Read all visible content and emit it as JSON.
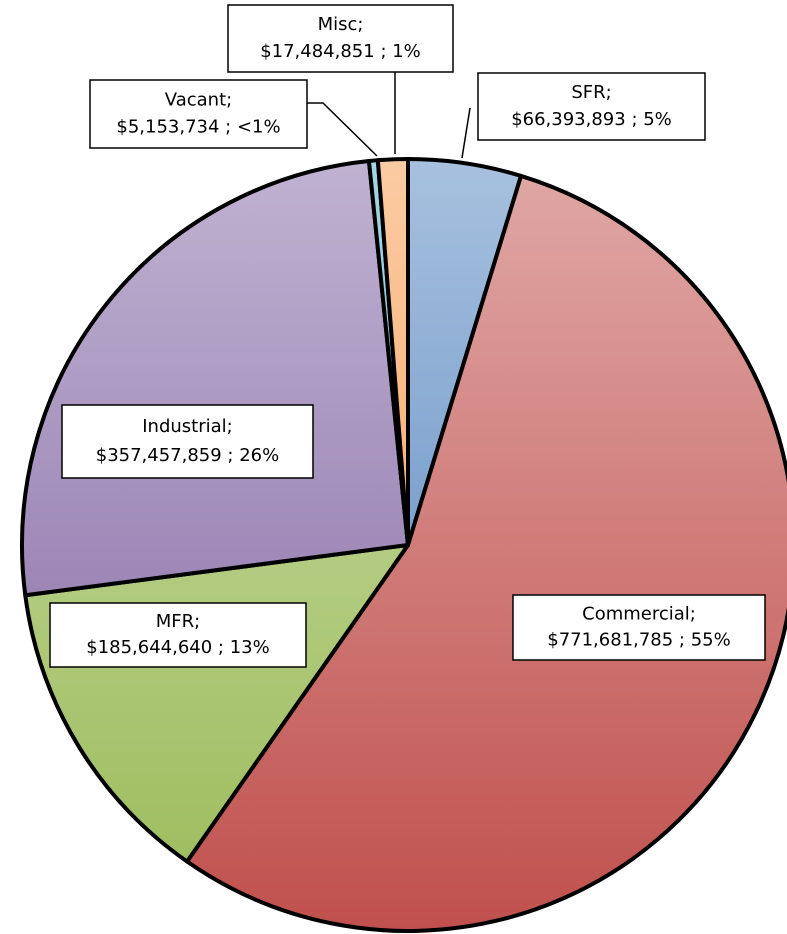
{
  "chart_data": {
    "type": "pie",
    "categories": [
      "SFR;",
      "Commercial;",
      "MFR;",
      "Industrial;",
      "Vacant;",
      "Misc;"
    ],
    "values": [
      66393893,
      771681785,
      185644640,
      357457859,
      5153734,
      17484851
    ],
    "value_labels": [
      "$66,393,893 ; 5%",
      "$771,681,785 ; 55%",
      "$185,644,640 ; 13%",
      "$357,457,859 ; 26%",
      "$5,153,734 ; <1%",
      "$17,484,851 ; 1%"
    ],
    "colors": [
      "#4f81bd",
      "#c0504d",
      "#9bbb59",
      "#8064a2",
      "#4bacc6",
      "#f79646"
    ]
  }
}
